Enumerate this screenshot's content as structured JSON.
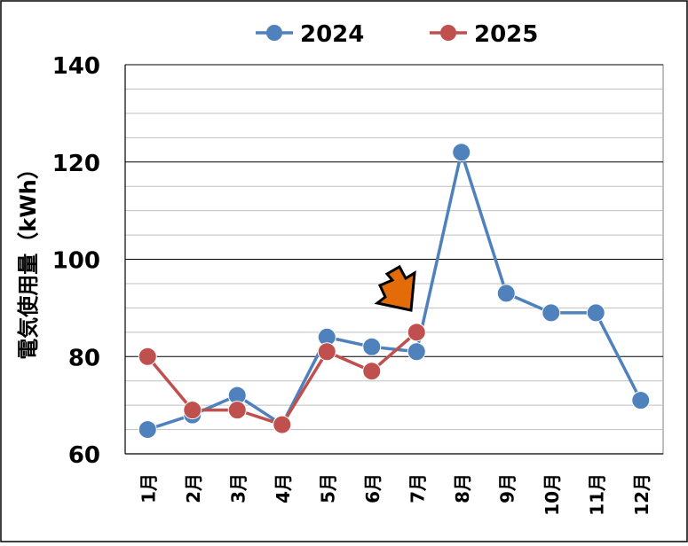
{
  "chart_data": {
    "type": "line",
    "categories": [
      "1月",
      "2月",
      "3月",
      "4月",
      "5月",
      "6月",
      "7月",
      "8月",
      "9月",
      "10月",
      "11月",
      "12月"
    ],
    "series": [
      {
        "name": "2024",
        "color": "#4F81BD",
        "values": [
          65,
          68,
          72,
          66,
          84,
          82,
          81,
          122,
          93,
          89,
          89,
          71
        ]
      },
      {
        "name": "2025",
        "color": "#C0504D",
        "values": [
          80,
          69,
          69,
          66,
          81,
          77,
          85,
          null,
          null,
          null,
          null,
          null
        ]
      }
    ],
    "title": "",
    "xlabel": "",
    "ylabel": "電気使用量（kWh）",
    "ylim": [
      60,
      140
    ],
    "yticks": [
      "60",
      "80",
      "100",
      "120",
      "140"
    ],
    "major_step": 20,
    "minor_step": 5,
    "grid": true,
    "legend_position": "top",
    "annotation": {
      "type": "arrow",
      "icon": "down-right-arrow-icon",
      "target_series": "2025",
      "target_category": "7月",
      "color": "#E36C09"
    }
  }
}
